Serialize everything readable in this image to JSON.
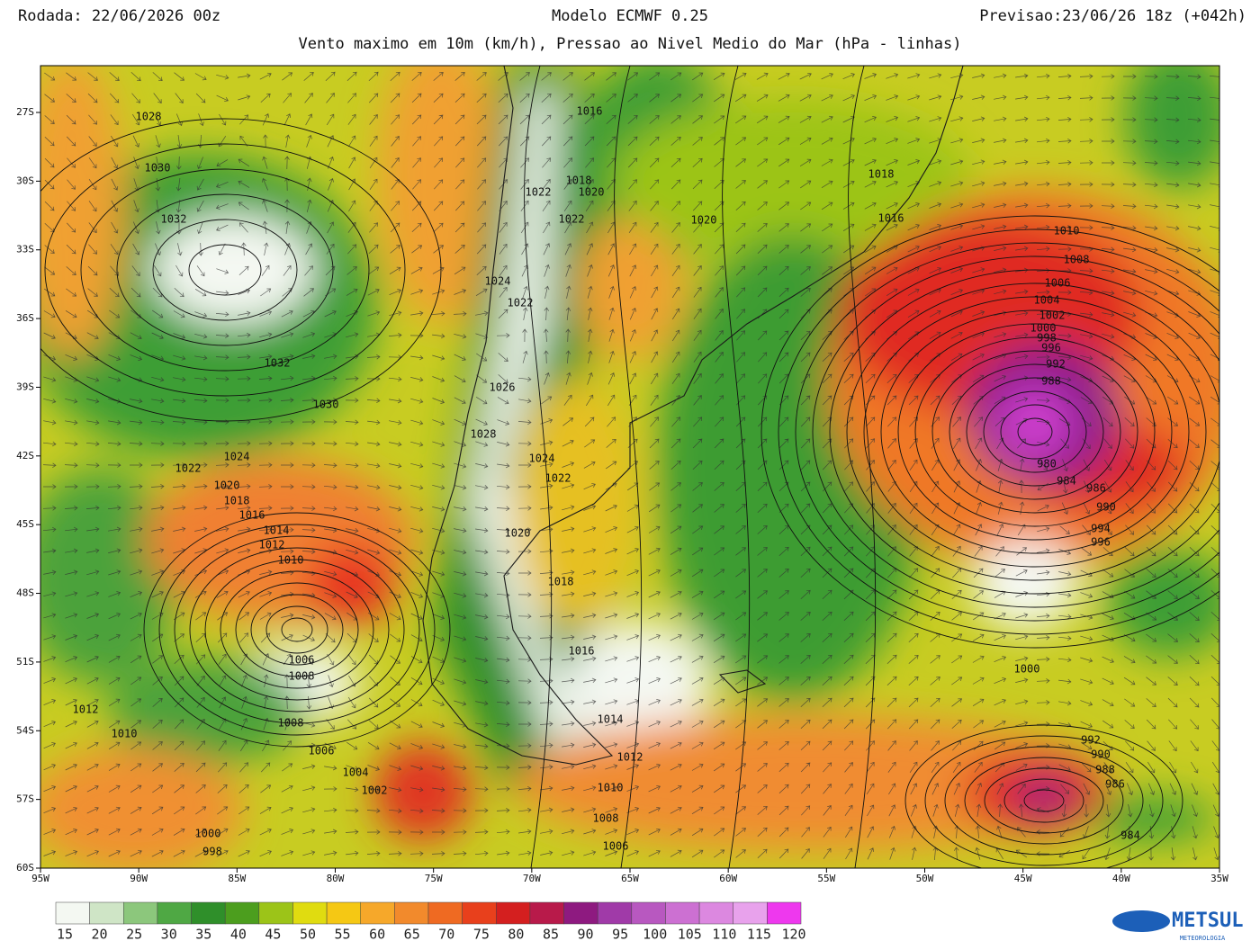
{
  "header": {
    "run": "Rodada: 22/06/2026 00z",
    "model": "Modelo ECMWF 0.25",
    "forecast": "Previsao:23/06/26 18z (+042h)",
    "subtitle": "Vento maximo em 10m (km/h), Pressao ao Nivel Medio do Mar (hPa - linhas)"
  },
  "map": {
    "lat_labels": [
      "27S",
      "30S",
      "33S",
      "36S",
      "39S",
      "42S",
      "45S",
      "48S",
      "51S",
      "54S",
      "57S",
      "60S"
    ],
    "lon_labels": [
      "95W",
      "90W",
      "85W",
      "80W",
      "75W",
      "70W",
      "65W",
      "60W",
      "55W",
      "50W",
      "45W",
      "40W",
      "35W"
    ],
    "isobar_labels": [
      1028,
      1030,
      1032,
      1032,
      1030,
      1024,
      1022,
      1020,
      1018,
      1016,
      1014,
      1012,
      1010,
      1006,
      1008,
      1012,
      1010,
      1008,
      1006,
      1004,
      1002,
      1000,
      998,
      1016,
      1018,
      1020,
      1022,
      1022,
      1024,
      1022,
      1026,
      1028,
      1024,
      1022,
      1020,
      1018,
      1016,
      1014,
      1012,
      1010,
      1008,
      1006,
      1018,
      1016,
      1020,
      1010,
      1008,
      1006,
      1004,
      1002,
      1000,
      998,
      996,
      992,
      988,
      980,
      984,
      986,
      990,
      994,
      996,
      1000,
      992,
      990,
      988,
      986,
      984
    ]
  },
  "colorbar": {
    "labels": [
      15,
      20,
      25,
      30,
      35,
      40,
      45,
      50,
      55,
      60,
      65,
      70,
      75,
      80,
      85,
      90,
      95,
      100,
      105,
      110,
      115,
      120
    ],
    "colors": [
      "#f4f8f2",
      "#cfe5c6",
      "#8cc77c",
      "#4fa844",
      "#2f8f2a",
      "#4c9e1e",
      "#9cc418",
      "#e0dc10",
      "#f5c814",
      "#f6a82a",
      "#f28a2c",
      "#ef6a22",
      "#e8401c",
      "#d41f1f",
      "#b81a4a",
      "#8e1a80",
      "#a03aa8",
      "#b858c0",
      "#cc70d2",
      "#dc88e0",
      "#e8a2ec",
      "#ee38ee"
    ]
  },
  "logo": {
    "name": "METSUL",
    "tagline": "METEOROLOGIA"
  }
}
